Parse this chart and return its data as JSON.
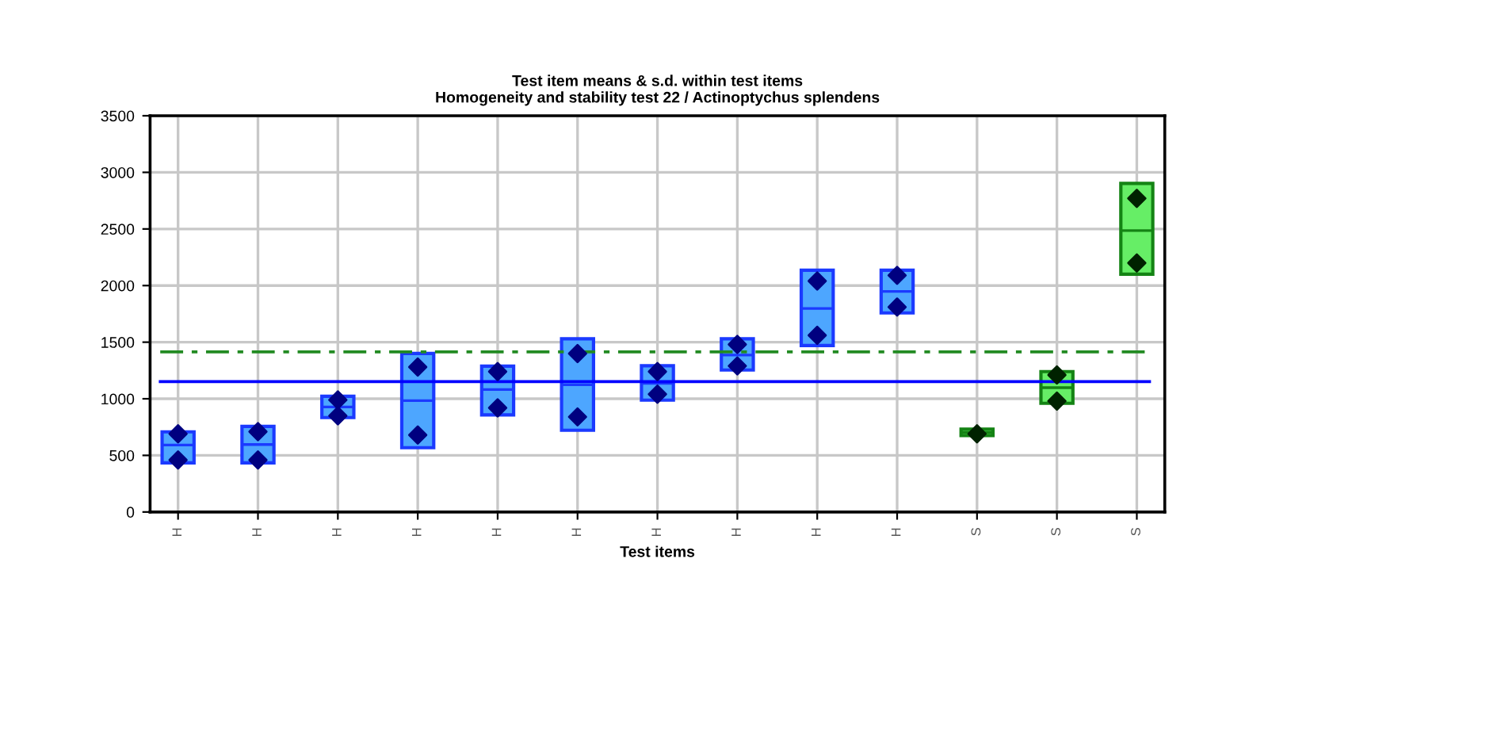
{
  "chart_data": {
    "type": "box",
    "title": "Test item means & s.d. within test items\nHomogeneity and stability test 22 / Actinoptychus splendens",
    "xlabel": "Test items",
    "categories": [
      "H",
      "H",
      "H",
      "H",
      "H",
      "H",
      "H",
      "H",
      "H",
      "H",
      "S",
      "S",
      "S"
    ],
    "ylim": [
      0,
      3500
    ],
    "yticks": [
      0,
      500,
      1000,
      1500,
      2000,
      2500,
      3000,
      3500
    ],
    "grid": true,
    "series": [
      {
        "colors": [
          "#4da6ff",
          "#4da6ff",
          "#4da6ff",
          "#4da6ff",
          "#4da6ff",
          "#4da6ff",
          "#4da6ff",
          "#4da6ff",
          "#4da6ff",
          "#4da6ff",
          "#66ee66",
          "#66ee66",
          "#66ee66"
        ],
        "boxes": [
          {
            "low": 434,
            "q1": 434,
            "median": 592,
            "q3": 708,
            "high": 708
          },
          {
            "low": 434,
            "q1": 434,
            "median": 596,
            "q3": 756,
            "high": 756
          },
          {
            "low": 834,
            "q1": 834,
            "median": 928,
            "q3": 1022,
            "high": 1022
          },
          {
            "low": 568,
            "q1": 568,
            "median": 984,
            "q3": 1400,
            "high": 1400
          },
          {
            "low": 858,
            "q1": 858,
            "median": 1082,
            "q3": 1288,
            "high": 1288
          },
          {
            "low": 722,
            "q1": 722,
            "median": 1124,
            "q3": 1530,
            "high": 1530
          },
          {
            "low": 988,
            "q1": 988,
            "median": 1136,
            "q3": 1292,
            "high": 1292
          },
          {
            "low": 1254,
            "q1": 1254,
            "median": 1386,
            "q3": 1530,
            "high": 1530
          },
          {
            "low": 1470,
            "q1": 1470,
            "median": 1798,
            "q3": 2136,
            "high": 2136
          },
          {
            "low": 1758,
            "q1": 1758,
            "median": 1948,
            "q3": 2136,
            "high": 2136
          },
          {
            "low": 676,
            "q1": 676,
            "median": 704,
            "q3": 732,
            "high": 732
          },
          {
            "low": 960,
            "q1": 960,
            "median": 1098,
            "q3": 1240,
            "high": 1240
          },
          {
            "low": 2100,
            "q1": 2100,
            "median": 2486,
            "q3": 2902,
            "high": 2902
          }
        ]
      },
      {
        "type": "scatter",
        "marker": "diamond",
        "colors": [
          "#000080",
          "#000080",
          "#000080",
          "#000080",
          "#000080",
          "#000080",
          "#000080",
          "#000080",
          "#000080",
          "#000080",
          "#002200",
          "#002200",
          "#002200"
        ],
        "values": [
          690,
          710,
          990,
          1280,
          1240,
          1400,
          1240,
          1480,
          2040,
          2090,
          null,
          1210,
          2770
        ]
      },
      {
        "type": "scatter",
        "marker": "diamond",
        "colors": [
          "#000080",
          "#000080",
          "#000080",
          "#000080",
          "#000080",
          "#000080",
          "#000080",
          "#000080",
          "#000080",
          "#000080",
          "#002200",
          "#002200",
          "#002200"
        ],
        "values": [
          460,
          460,
          850,
          680,
          920,
          840,
          1040,
          1290,
          1560,
          1810,
          690,
          980,
          2200
        ]
      }
    ],
    "ref_lines": [
      {
        "axis": "y",
        "value": 1414,
        "color": "#228b22",
        "line_style": "dashdot"
      },
      {
        "axis": "y",
        "value": 1152,
        "color": "#0000ff",
        "line_style": "solid"
      }
    ]
  }
}
